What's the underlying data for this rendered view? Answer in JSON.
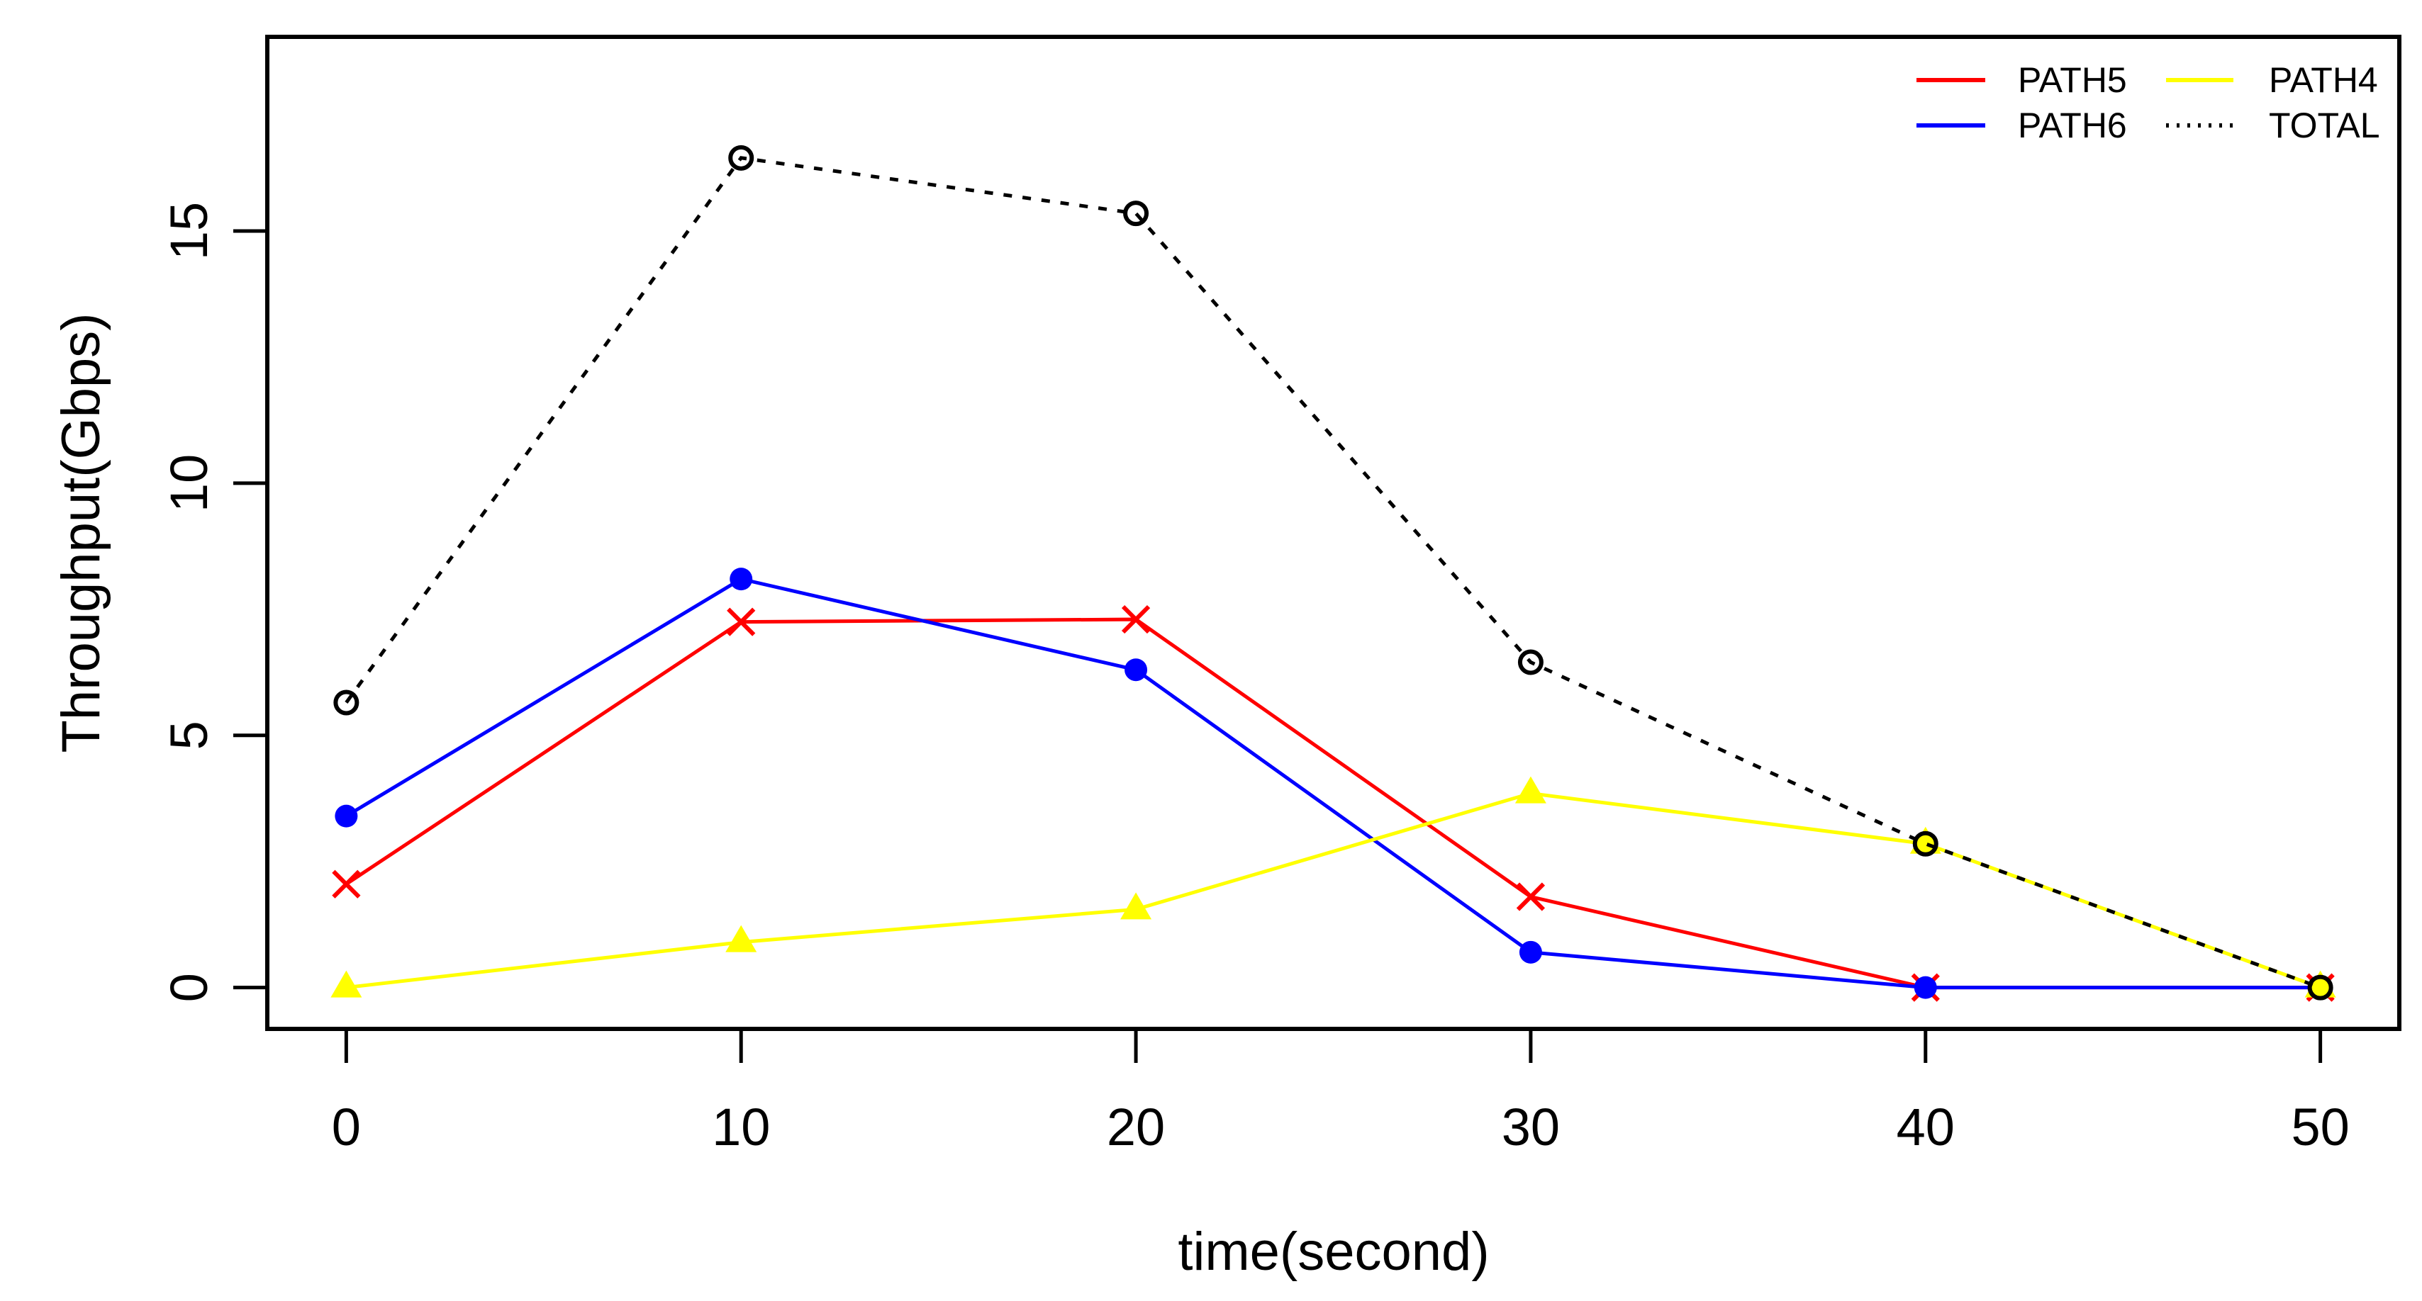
{
  "chart_data": {
    "type": "line",
    "title": "",
    "xlabel": "time(second)",
    "ylabel": "Throughput(Gbps)",
    "x": [
      0,
      10,
      20,
      30,
      40,
      50
    ],
    "x_tick_labels": [
      "0",
      "10",
      "20",
      "30",
      "40",
      "50"
    ],
    "y_ticks": [
      0,
      5,
      10,
      15
    ],
    "y_tick_labels": [
      "0",
      "5",
      "10",
      "15"
    ],
    "xlim": [
      -2,
      52
    ],
    "ylim": [
      -0.82,
      18.85
    ],
    "grid": false,
    "background": "#ffffff",
    "axis_color": "#000000",
    "legend_position": "top-right",
    "legend_rows": [
      [
        "PATH5",
        "PATH4"
      ],
      [
        "PATH6",
        "TOTAL"
      ]
    ],
    "series": [
      {
        "name": "PATH5",
        "color": "#ff0000",
        "line_style": "solid",
        "marker": "x",
        "values": [
          2.05,
          7.25,
          7.3,
          1.8,
          0,
          0
        ]
      },
      {
        "name": "PATH6",
        "color": "#0000ff",
        "line_style": "solid",
        "marker": "circle-filled",
        "values": [
          3.4,
          8.1,
          6.3,
          0.7,
          0,
          0
        ]
      },
      {
        "name": "PATH4",
        "color": "#ffff00",
        "line_style": "solid",
        "marker": "triangle-filled",
        "values": [
          0,
          0.9,
          1.55,
          3.85,
          2.85,
          0
        ]
      },
      {
        "name": "TOTAL",
        "color": "#000000",
        "line_style": "dotted",
        "marker": "circle-open",
        "values": [
          5.65,
          16.45,
          15.35,
          6.45,
          2.85,
          0
        ]
      }
    ]
  }
}
